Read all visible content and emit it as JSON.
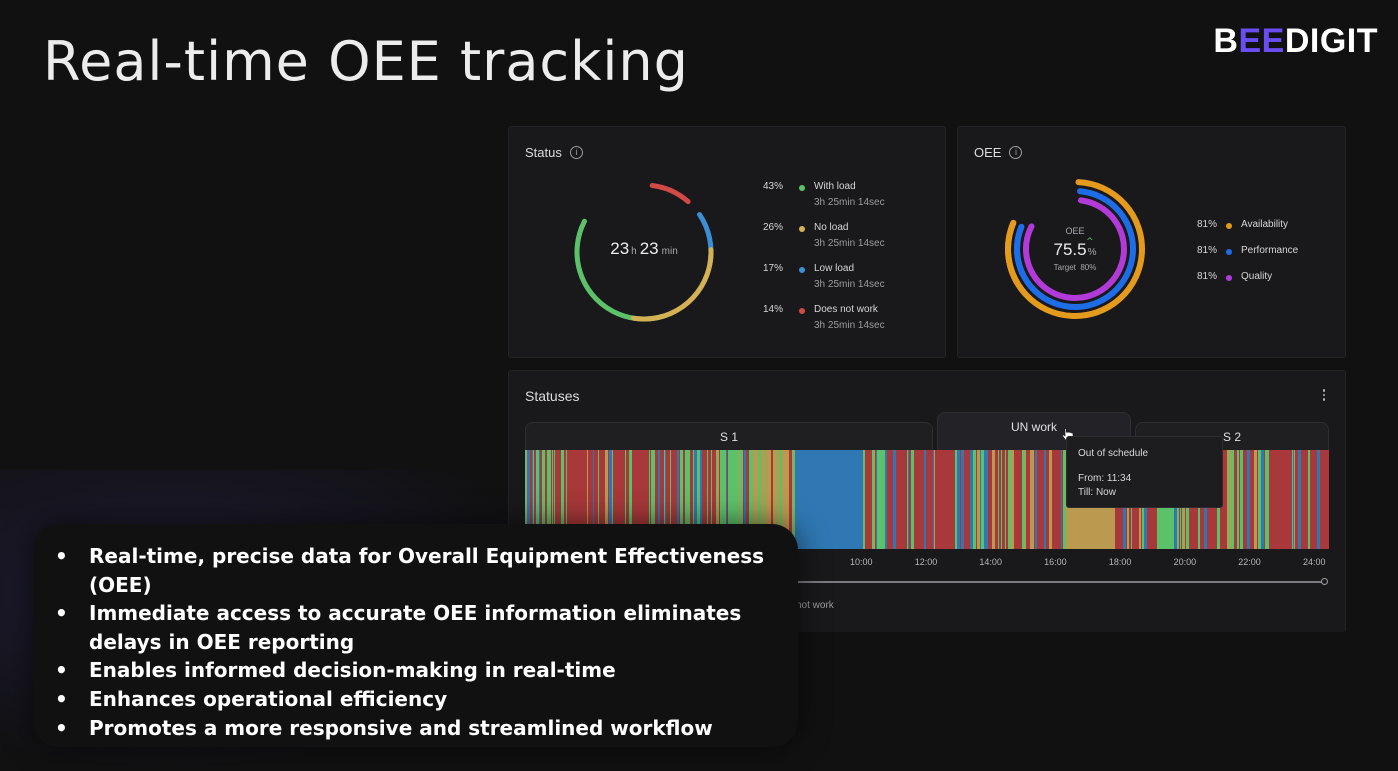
{
  "slide": {
    "title": "Real-time OEE tracking"
  },
  "brand": {
    "p1": "B",
    "p2": "EE",
    "p3": "DIGIT"
  },
  "status_card": {
    "title": "Status",
    "center_hours": "23",
    "center_h_unit": "h",
    "center_minutes": "23",
    "center_min_unit": "min",
    "legend": [
      {
        "pct": "43%",
        "label": "With load",
        "duration": "3h 25min 14sec",
        "color": "#5cc26a"
      },
      {
        "pct": "26%",
        "label": "No load",
        "duration": "3h 25min 14sec",
        "color": "#d4b155"
      },
      {
        "pct": "17%",
        "label": "Low load",
        "duration": "3h 25min 14sec",
        "color": "#3b8fd4"
      },
      {
        "pct": "14%",
        "label": "Does not work",
        "duration": "3h 25min 14sec",
        "color": "#d24a45"
      }
    ]
  },
  "oee_card": {
    "title": "OEE",
    "center_label": "OEE",
    "center_value": "75.5",
    "center_unit": "%",
    "target": "Target  80%",
    "legend": [
      {
        "pct": "81%",
        "label": "Availability",
        "color": "#e39a1d"
      },
      {
        "pct": "81%",
        "label": "Performance",
        "color": "#1e6de6"
      },
      {
        "pct": "81%",
        "label": "Quality",
        "color": "#b23ad8"
      }
    ]
  },
  "statuses_card": {
    "title": "Statuses",
    "menu_icon": "more-vertical-icon",
    "tabs": {
      "s1": "S 1",
      "un_work": "UN work",
      "s2": "S 2"
    },
    "tooltip": {
      "title": "Out of schedule",
      "from": "From: 11:34",
      "till": "Till: Now"
    },
    "ticks": [
      "10:00",
      "12:00",
      "14:00",
      "16:00",
      "18:00",
      "20:00",
      "22:00",
      "24:00"
    ],
    "legend_fragment": "not work"
  },
  "bullets": [
    "Real-time, precise data for Overall Equipment Effectiveness (OEE)",
    "Immediate access to accurate OEE information eliminates delays in OEE reporting",
    "Enables informed decision-making in real-time",
    "Enhances operational efficiency",
    "Promotes a more responsive and streamlined workflow"
  ],
  "bullet_symbol": "•",
  "colors": {
    "with_load": "#5cc26a",
    "no_load": "#b99a4e",
    "low_load": "#2f78b3",
    "does_not_work": "#a8383a"
  }
}
